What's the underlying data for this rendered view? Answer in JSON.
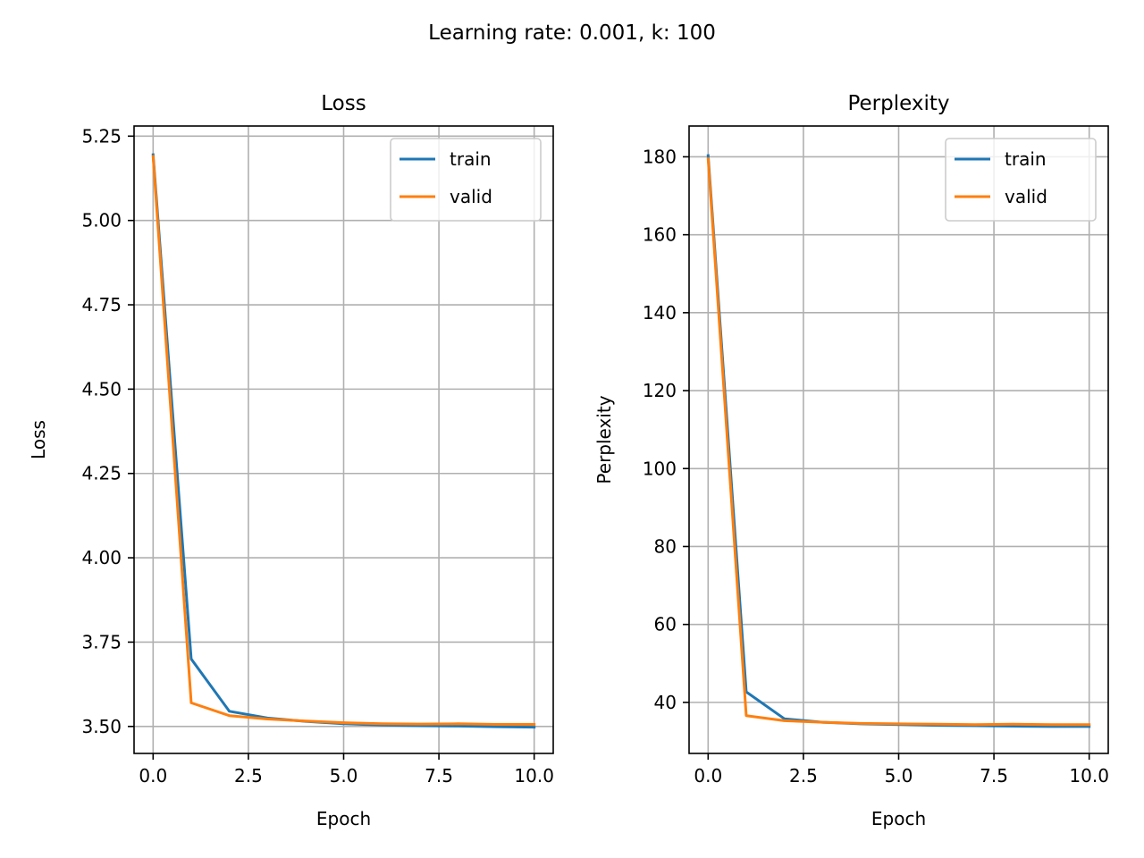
{
  "figure": {
    "suptitle": "Learning rate: 0.001, k: 100"
  },
  "chart_data": [
    {
      "type": "line",
      "title": "Loss",
      "xlabel": "Epoch",
      "ylabel": "Loss",
      "xlim": [
        -0.5,
        10.5
      ],
      "ylim": [
        3.42,
        5.28
      ],
      "xticks": [
        0,
        2.5,
        5,
        7.5,
        10
      ],
      "xtick_labels": [
        "0.0",
        "2.5",
        "5.0",
        "7.5",
        "10.0"
      ],
      "yticks": [
        3.5,
        3.75,
        4.0,
        4.25,
        4.5,
        4.75,
        5.0,
        5.25
      ],
      "ytick_labels": [
        "3.50",
        "3.75",
        "4.00",
        "4.25",
        "4.50",
        "4.75",
        "5.00",
        "5.25"
      ],
      "grid": true,
      "legend": "upper right",
      "x": [
        0,
        1,
        2,
        3,
        4,
        5,
        6,
        7,
        8,
        9,
        10
      ],
      "series": [
        {
          "name": "train",
          "color": "#1f77b4",
          "values": [
            5.195,
            3.7,
            3.545,
            3.525,
            3.515,
            3.508,
            3.504,
            3.502,
            3.501,
            3.499,
            3.498
          ]
        },
        {
          "name": "valid",
          "color": "#ff7f0e",
          "values": [
            5.19,
            3.57,
            3.532,
            3.522,
            3.516,
            3.511,
            3.508,
            3.507,
            3.508,
            3.506,
            3.506
          ]
        }
      ]
    },
    {
      "type": "line",
      "title": "Perplexity",
      "xlabel": "Epoch",
      "ylabel": "Perplexity",
      "xlim": [
        -0.5,
        10.5
      ],
      "ylim": [
        26.9,
        187.9
      ],
      "xticks": [
        0,
        2.5,
        5,
        7.5,
        10
      ],
      "xtick_labels": [
        "0.0",
        "2.5",
        "5.0",
        "7.5",
        "10.0"
      ],
      "yticks": [
        40,
        60,
        80,
        100,
        120,
        140,
        160,
        180
      ],
      "ytick_labels": [
        "40",
        "60",
        "80",
        "100",
        "120",
        "140",
        "160",
        "180"
      ],
      "grid": true,
      "legend": "upper right",
      "x": [
        0,
        1,
        2,
        3,
        4,
        5,
        6,
        7,
        8,
        9,
        10
      ],
      "series": [
        {
          "name": "train",
          "color": "#1f77b4",
          "values": [
            180.3,
            42.7,
            35.8,
            34.9,
            34.5,
            34.3,
            34.1,
            34.0,
            33.9,
            33.8,
            33.8
          ]
        },
        {
          "name": "valid",
          "color": "#ff7f0e",
          "values": [
            179.5,
            36.6,
            35.3,
            34.9,
            34.6,
            34.5,
            34.4,
            34.3,
            34.4,
            34.3,
            34.3
          ]
        }
      ]
    }
  ]
}
